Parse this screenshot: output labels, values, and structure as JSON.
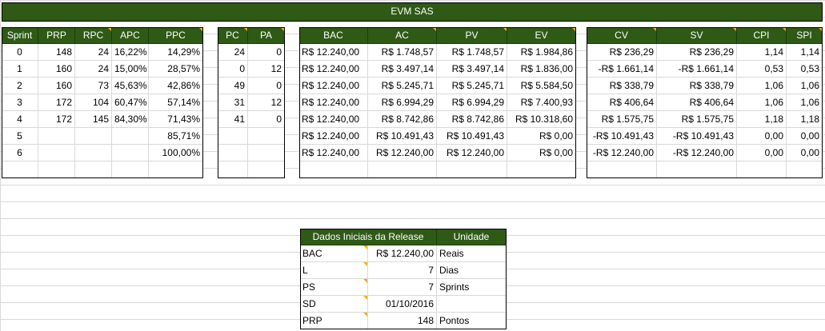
{
  "sheet": {
    "title": "EVM SAS",
    "sprint_headers": [
      "Sprint",
      "PRP",
      "RPC",
      "APC",
      "PPC"
    ],
    "pc_headers": [
      "PC",
      "PA"
    ],
    "value_headers": [
      "BAC",
      "AC",
      "PV",
      "EV"
    ],
    "index_headers": [
      "CV",
      "SV",
      "CPI",
      "SPI"
    ],
    "rows": [
      {
        "sprint": "0",
        "prp": "148",
        "rpc": "24",
        "apc": "16,22%",
        "ppc": "14,29%",
        "pc": "24",
        "pa": "0",
        "bac": "R$ 12.240,00",
        "ac": "R$ 1.748,57",
        "pv": "R$ 1.748,57",
        "ev": "R$ 1.984,86",
        "cv": "R$ 236,29",
        "sv": "R$ 236,29",
        "cpi": "1,14",
        "spi": "1,14"
      },
      {
        "sprint": "1",
        "prp": "160",
        "rpc": "24",
        "apc": "15,00%",
        "ppc": "28,57%",
        "pc": "0",
        "pa": "12",
        "bac": "R$ 12.240,00",
        "ac": "R$ 3.497,14",
        "pv": "R$ 3.497,14",
        "ev": "R$ 1.836,00",
        "cv": "-R$ 1.661,14",
        "sv": "-R$ 1.661,14",
        "cpi": "0,53",
        "spi": "0,53"
      },
      {
        "sprint": "2",
        "prp": "160",
        "rpc": "73",
        "apc": "45,63%",
        "ppc": "42,86%",
        "pc": "49",
        "pa": "0",
        "bac": "R$ 12.240,00",
        "ac": "R$ 5.245,71",
        "pv": "R$ 5.245,71",
        "ev": "R$ 5.584,50",
        "cv": "R$ 338,79",
        "sv": "R$ 338,79",
        "cpi": "1,06",
        "spi": "1,06"
      },
      {
        "sprint": "3",
        "prp": "172",
        "rpc": "104",
        "apc": "60,47%",
        "ppc": "57,14%",
        "pc": "31",
        "pa": "12",
        "bac": "R$ 12.240,00",
        "ac": "R$ 6.994,29",
        "pv": "R$ 6.994,29",
        "ev": "R$ 7.400,93",
        "cv": "R$ 406,64",
        "sv": "R$ 406,64",
        "cpi": "1,06",
        "spi": "1,06"
      },
      {
        "sprint": "4",
        "prp": "172",
        "rpc": "145",
        "apc": "84,30%",
        "ppc": "71,43%",
        "pc": "41",
        "pa": "0",
        "bac": "R$ 12.240,00",
        "ac": "R$ 8.742,86",
        "pv": "R$ 8.742,86",
        "ev": "R$ 10.318,60",
        "cv": "R$ 1.575,75",
        "sv": "R$ 1.575,75",
        "cpi": "1,18",
        "spi": "1,18"
      },
      {
        "sprint": "5",
        "prp": "",
        "rpc": "",
        "apc": "",
        "ppc": "85,71%",
        "pc": "",
        "pa": "",
        "bac": "R$ 12.240,00",
        "ac": "R$ 10.491,43",
        "pv": "R$ 10.491,43",
        "ev": "R$ 0,00",
        "cv": "-R$ 10.491,43",
        "sv": "-R$ 10.491,43",
        "cpi": "0,00",
        "spi": "0,00"
      },
      {
        "sprint": "6",
        "prp": "",
        "rpc": "",
        "apc": "",
        "ppc": "100,00%",
        "pc": "",
        "pa": "",
        "bac": "R$ 12.240,00",
        "ac": "R$ 12.240,00",
        "pv": "R$ 12.240,00",
        "ev": "R$ 0,00",
        "cv": "-R$ 12.240,00",
        "sv": "-R$ 12.240,00",
        "cpi": "0,00",
        "spi": "0,00"
      }
    ]
  },
  "release": {
    "header_label": "Dados Iniciais da Release",
    "header_unit": "Unidade",
    "rows": [
      {
        "label": "BAC",
        "value": "R$ 12.240,00",
        "unit": "Reais"
      },
      {
        "label": "L",
        "value": "7",
        "unit": "Dias"
      },
      {
        "label": "PS",
        "value": "7",
        "unit": "Sprints"
      },
      {
        "label": "SD",
        "value": "01/10/2016",
        "unit": ""
      },
      {
        "label": "PRP",
        "value": "148",
        "unit": "Pontos"
      }
    ]
  },
  "colors": {
    "header_green": "#2e5a16",
    "comment_marker": "#f2b01e"
  }
}
